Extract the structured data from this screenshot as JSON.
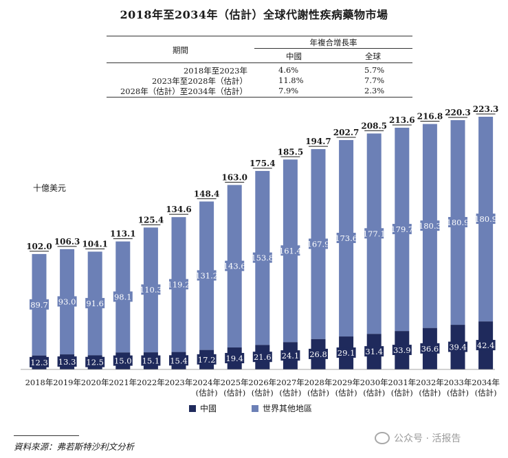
{
  "title": "2018年至2034年（估計）全球代謝性疾病藥物市場",
  "cagr_table": {
    "header_period": "期間",
    "header_cagr": "年複合增長率",
    "col_china": "中國",
    "col_global": "全球",
    "rows": [
      {
        "period": "2018年至2023年",
        "china": "4.6%",
        "global": "5.7%"
      },
      {
        "period": "2023年至2028年（估計）",
        "china": "11.8%",
        "global": "7.7%"
      },
      {
        "period": "2028年（估計）至2034年（估計）",
        "china": "7.9%",
        "global": "2.3%"
      }
    ]
  },
  "unit_label": "十億美元",
  "legend": {
    "china": "中國",
    "rest": "世界其他地區"
  },
  "colors": {
    "china": "#1f2a5c",
    "rest": "#6c80b6"
  },
  "source": "資料來源：弗若斯特沙利文分析",
  "watermark": "公众号 · 活报告",
  "chart_data": {
    "type": "bar",
    "stacked": true,
    "categories": [
      "2018年",
      "2019年",
      "2020年",
      "2021年",
      "2022年",
      "2023年",
      "2024年",
      "2025年",
      "2026年",
      "2027年",
      "2028年",
      "2029年",
      "2030年",
      "2031年",
      "2032年",
      "2033年",
      "2034年"
    ],
    "category_sublabels": [
      "",
      "",
      "",
      "",
      "",
      "",
      "(估計)",
      "(估計)",
      "(估計)",
      "(估計)",
      "(估計)",
      "(估計)",
      "(估計)",
      "(估計)",
      "(估計)",
      "(估計)",
      "(估計)"
    ],
    "series": [
      {
        "name": "中國",
        "values": [
          12.3,
          13.3,
          12.5,
          15.0,
          15.1,
          15.4,
          17.2,
          19.4,
          21.6,
          24.1,
          26.8,
          29.1,
          31.4,
          33.9,
          36.6,
          39.4,
          42.4
        ]
      },
      {
        "name": "世界其他地區",
        "values": [
          89.7,
          93.0,
          91.6,
          98.1,
          110.3,
          119.2,
          131.2,
          143.6,
          153.8,
          161.4,
          167.9,
          173.6,
          177.1,
          179.7,
          180.3,
          180.9,
          180.9
        ]
      }
    ],
    "totals": [
      102.0,
      106.3,
      104.1,
      113.1,
      125.4,
      134.6,
      148.4,
      163.0,
      175.4,
      185.5,
      194.7,
      202.7,
      208.5,
      213.6,
      216.8,
      220.3,
      223.3
    ],
    "ylabel": "十億美元",
    "ylim": [
      0,
      223.3
    ],
    "legend_position": "bottom"
  }
}
